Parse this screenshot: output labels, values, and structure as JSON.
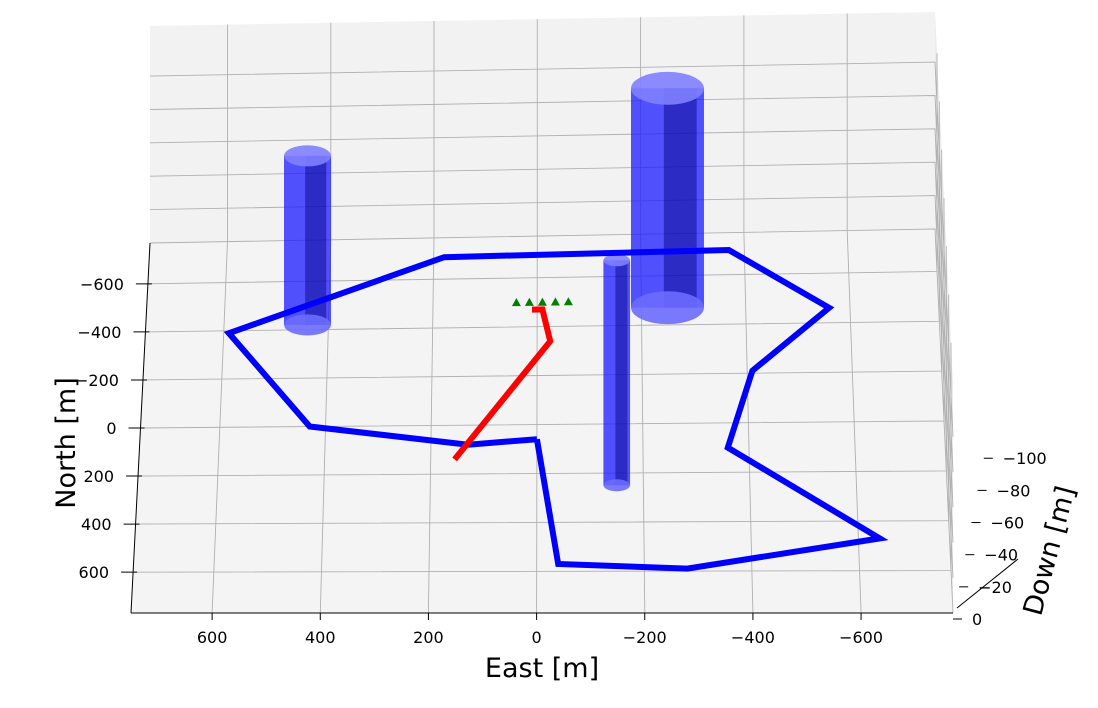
{
  "chart_data": {
    "type": "line3d",
    "xlabel": "East [m]",
    "ylabel": "North [m]",
    "zlabel": "Down [m]",
    "x_ticks": [
      "600",
      "400",
      "200",
      "0",
      "−200",
      "−400",
      "−600"
    ],
    "y_ticks": [
      "−600",
      "−400",
      "−200",
      "0",
      "200",
      "400",
      "600"
    ],
    "z_ticks": [
      "−100",
      "−80",
      "−60",
      "−40",
      "−20",
      "0"
    ],
    "x_tick_values": [
      600,
      400,
      200,
      0,
      -200,
      -400,
      -600
    ],
    "y_tick_values": [
      -600,
      -400,
      -200,
      0,
      200,
      400,
      600
    ],
    "z_tick_values": [
      -100,
      -80,
      -60,
      -40,
      -20,
      0
    ],
    "xlim": [
      750,
      -770
    ],
    "ylim": [
      -770,
      770
    ],
    "zlim": [
      0,
      -130
    ],
    "grid": true,
    "series": [
      {
        "color": "#0000ff",
        "points": [
          {
            "east": 0,
            "north": 60,
            "down": 0
          },
          {
            "east": -40,
            "north": 570,
            "down": 0
          },
          {
            "east": -280,
            "north": 590,
            "down": 0
          },
          {
            "east": -640,
            "north": 470,
            "down": 0
          },
          {
            "east": -360,
            "north": 100,
            "down": 0
          },
          {
            "east": -410,
            "north": -210,
            "down": 0
          },
          {
            "east": -560,
            "north": -460,
            "down": 0
          },
          {
            "east": -370,
            "north": -700,
            "down": 0
          },
          {
            "east": 180,
            "north": -690,
            "down": 0
          },
          {
            "east": 590,
            "north": -390,
            "down": 0
          },
          {
            "east": 430,
            "north": 0,
            "down": 0
          },
          {
            "east": 130,
            "north": 80,
            "down": 0
          },
          {
            "east": 0,
            "north": 60,
            "down": 0
          }
        ]
      },
      {
        "color": "#ff0000",
        "points": [
          {
            "east": 155,
            "north": 140,
            "down": 0
          },
          {
            "east": -25,
            "north": -340,
            "down": 0
          },
          {
            "east": -10,
            "north": -470,
            "down": 0
          },
          {
            "east": 10,
            "north": -470,
            "down": 0
          }
        ]
      }
    ],
    "markers": {
      "color": "#008000",
      "shape": "triangle",
      "points": [
        {
          "east": 40,
          "north": -500,
          "down": 0
        },
        {
          "east": 15,
          "north": -500,
          "down": 0
        },
        {
          "east": -10,
          "north": -500,
          "down": 0
        },
        {
          "east": -35,
          "north": -500,
          "down": 0
        },
        {
          "east": -60,
          "north": -500,
          "down": 0
        }
      ]
    },
    "obstacles": [
      {
        "east": 440,
        "north": -420,
        "radius": 45,
        "height": 100
      },
      {
        "east": -250,
        "north": -470,
        "radius": 70,
        "height": 130
      },
      {
        "east": -150,
        "north": 250,
        "radius": 25,
        "height": 130
      }
    ]
  }
}
